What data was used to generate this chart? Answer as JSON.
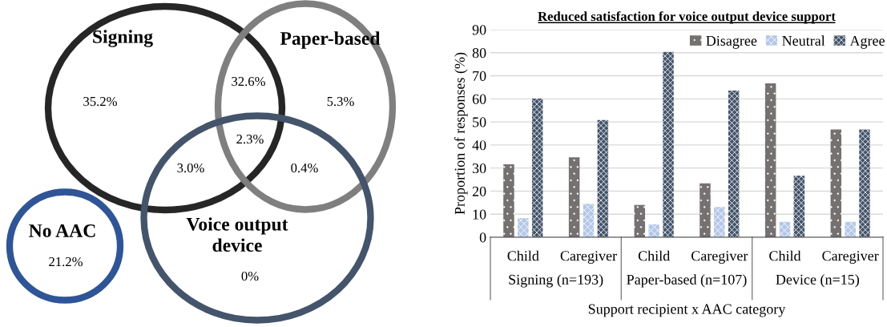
{
  "chart_data": [
    {
      "type": "other",
      "categories": [
        "Signing",
        "Paper-based",
        "Voice output\ndevice",
        "No AAC"
      ],
      "colors": [
        "#262626",
        "#7f7f7f",
        "#44546a",
        "#2f5597"
      ],
      "annotations": [
        "35.2%",
        "32.6%",
        "5.3%",
        "2.3%",
        "3.0%",
        "0.4%",
        "0%",
        "21.2%"
      ]
    },
    {
      "type": "bar",
      "title": "Reduced satisfaction for voice output device support",
      "ylabel": "Proportion of responses (%)",
      "xlabel": "Support recipient x AAC category",
      "categories": [
        "Child",
        "Caregiver",
        "Child",
        "Caregiver",
        "Child",
        "Caregiver"
      ],
      "series": [
        {
          "name": "Disagree",
          "color": "#767171",
          "values": [
            31.6,
            34.7,
            14.0,
            23.4,
            66.7,
            46.7
          ]
        },
        {
          "name": "Neutral",
          "color": "#b4c7e7",
          "values": [
            8.3,
            14.5,
            5.6,
            13.1,
            6.7,
            6.7
          ]
        },
        {
          "name": "Agree",
          "color": "#44546a",
          "values": [
            60.1,
            50.8,
            80.4,
            63.6,
            26.7,
            46.7
          ]
        }
      ],
      "annotations": [
        "Signing (n=193)",
        "Paper-based (n=107)",
        "Device (n=15)"
      ],
      "ylim": [
        0,
        90
      ],
      "yticks": [
        0,
        10,
        20,
        30,
        40,
        50,
        60,
        70,
        80,
        90
      ],
      "grid": "y",
      "legend": "top right"
    }
  ]
}
